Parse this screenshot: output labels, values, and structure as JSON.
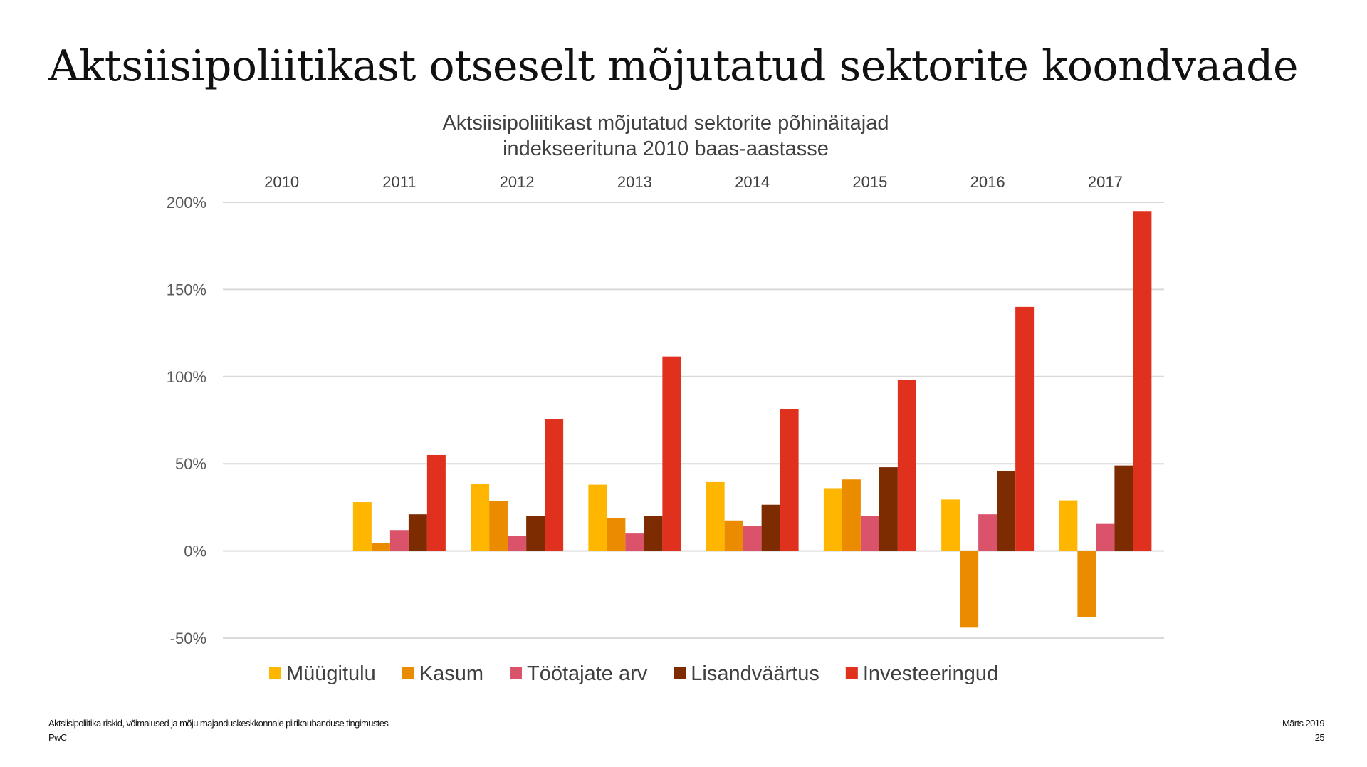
{
  "slide_title": "Aktsiisipoliitikast otseselt mõjutatud sektorite koondvaade",
  "footer": {
    "document": "Aktsiisipoliitika riskid, võimalused ja mõju majanduskeskkonnale piirikaubanduse tingimustes",
    "company": "PwC",
    "date": "Märts 2019",
    "page": "25"
  },
  "chart_data": {
    "type": "bar",
    "title_line1": "Aktsiisipoliitikast mõjutatud sektorite põhinäitajad",
    "title_line2": "indekseerituna 2010 baas-aastasse",
    "categories": [
      "2010",
      "2011",
      "2012",
      "2013",
      "2014",
      "2015",
      "2016",
      "2017"
    ],
    "category_axis_position": "top",
    "ylim": [
      -50,
      200
    ],
    "yticks": [
      -50,
      0,
      50,
      100,
      150,
      200
    ],
    "ytick_labels": [
      "-50%",
      "0%",
      "50%",
      "100%",
      "150%",
      "200%"
    ],
    "grid": true,
    "legend_position": "bottom",
    "series": [
      {
        "name": "Müügitulu",
        "color": "#FFB600",
        "values": [
          0,
          28,
          38.5,
          38,
          39.5,
          36,
          29.5,
          29
        ]
      },
      {
        "name": "Kasum",
        "color": "#EB8C00",
        "values": [
          0,
          4.5,
          28.5,
          19,
          17.5,
          41,
          -44,
          -38
        ]
      },
      {
        "name": "Töötajate arv",
        "color": "#DB536A",
        "values": [
          0,
          12,
          8.5,
          10,
          14.5,
          20,
          21,
          15.5
        ]
      },
      {
        "name": "Lisandväärtus",
        "color": "#7D2B00",
        "values": [
          0,
          21,
          20,
          20,
          26.5,
          48,
          46,
          49
        ]
      },
      {
        "name": "Investeeringud",
        "color": "#E0301E",
        "values": [
          0,
          55,
          75.5,
          111.5,
          81.5,
          98,
          140,
          195
        ]
      }
    ]
  }
}
